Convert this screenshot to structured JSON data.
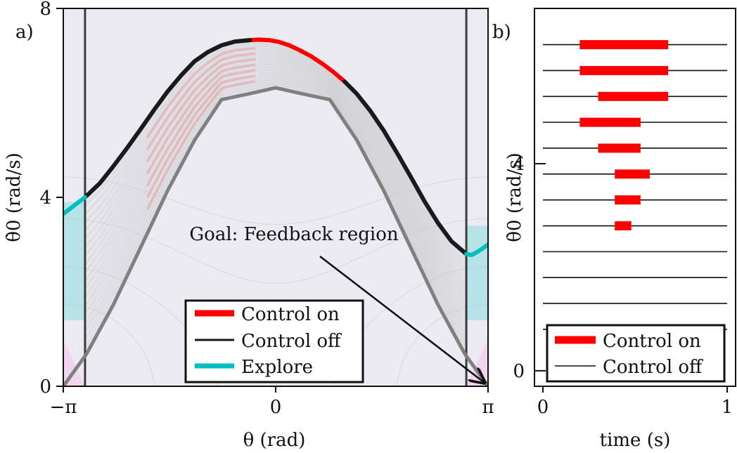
{
  "chart_data": [
    {
      "panel": "a)",
      "type": "line",
      "xlabel": "θ (rad)",
      "ylabel": "θ̇0 (rad/s)",
      "xlim": [
        -3.14159,
        3.14159
      ],
      "ylim": [
        0,
        8
      ],
      "x_ticks": [
        {
          "value": -3.14159,
          "label": "−π"
        },
        {
          "value": 0,
          "label": "0"
        },
        {
          "value": 3.14159,
          "label": "π"
        }
      ],
      "y_ticks": [
        {
          "value": 0,
          "label": "0"
        },
        {
          "value": 4,
          "label": "4"
        },
        {
          "value": 8,
          "label": "8"
        }
      ],
      "vertical_lines_x": [
        -2.82,
        2.82
      ],
      "series": [
        {
          "name": "Control on",
          "color": "#ff0000",
          "x": [
            -0.38,
            -0.25,
            -0.1,
            0.05,
            0.2,
            0.35,
            0.52,
            0.7,
            0.85,
            1.02
          ],
          "y": [
            7.33,
            7.34,
            7.33,
            7.29,
            7.22,
            7.12,
            6.99,
            6.82,
            6.66,
            6.45
          ]
        },
        {
          "name": "Control off",
          "color": "#1a1a1a",
          "x": [
            -2.82,
            -2.6,
            -2.4,
            -2.2,
            -2.0,
            -1.8,
            -1.6,
            -1.4,
            -1.2,
            -1.0,
            -0.8,
            -0.6,
            -0.38
          ],
          "y": [
            4.0,
            4.3,
            4.66,
            5.04,
            5.44,
            5.85,
            6.24,
            6.58,
            6.88,
            7.08,
            7.22,
            7.3,
            7.33
          ]
        },
        {
          "name": "Control off",
          "color": "#1a1a1a",
          "x": [
            1.02,
            1.2,
            1.4,
            1.6,
            1.8,
            2.0,
            2.2,
            2.4,
            2.6,
            2.82
          ],
          "y": [
            6.45,
            6.19,
            5.83,
            5.41,
            4.93,
            4.43,
            3.92,
            3.46,
            3.07,
            2.8
          ]
        },
        {
          "name": "Explore",
          "color": "#00bfbf",
          "x": [
            -3.14159,
            -3.05,
            -2.95,
            -2.82
          ],
          "y": [
            3.65,
            3.75,
            3.86,
            4.0
          ]
        },
        {
          "name": "Explore",
          "color": "#00bfbf",
          "x": [
            2.82,
            2.9,
            3.0,
            3.14159
          ],
          "y": [
            2.8,
            2.78,
            2.86,
            3.0
          ]
        },
        {
          "name": "",
          "color": "#808080",
          "x": [
            -3.14159,
            -2.8,
            -2.4,
            -2.0,
            -1.6,
            -1.2,
            -0.8,
            -0.4,
            0,
            0.4,
            0.8,
            1.2,
            1.6,
            2.0,
            2.4,
            2.8,
            3.14159
          ],
          "y": [
            0,
            0.68,
            1.73,
            2.93,
            4.14,
            5.21,
            6.07,
            6.19,
            6.32,
            6.19,
            6.07,
            5.21,
            4.14,
            2.93,
            1.73,
            0.68,
            0
          ]
        }
      ],
      "annotation": {
        "text": "Goal: Feedback region",
        "text_at": [
          0.55,
          2.8
        ],
        "arrow_to": [
          3.14159,
          0
        ]
      },
      "legend": {
        "position": "bottom-center",
        "entries": [
          "Control on",
          "Control off",
          "Explore"
        ]
      },
      "colors": {
        "background": "#ecebf4",
        "control_on": "#ff0000",
        "control_off": "#1a1a1a",
        "explore": "#00bfbf",
        "separatrix": "#808080"
      }
    },
    {
      "panel": "b)",
      "type": "bar",
      "xlabel": "time (s)",
      "ylabel": "θ̇0 (rad/s)",
      "xlim": [
        0,
        1
      ],
      "x_ticks": [
        {
          "value": 0,
          "label": "0"
        },
        {
          "value": 1,
          "label": "1"
        }
      ],
      "ylim": [
        -0.3,
        7.0
      ],
      "y_ticks": [
        {
          "value": 0,
          "label": "0"
        },
        {
          "value": 4,
          "label": "4"
        }
      ],
      "rows": [
        {
          "y": 6.3,
          "on": [
            0.2,
            0.68
          ]
        },
        {
          "y": 5.8,
          "on": [
            0.2,
            0.68
          ]
        },
        {
          "y": 5.3,
          "on": [
            0.3,
            0.68
          ]
        },
        {
          "y": 4.8,
          "on": [
            0.2,
            0.53
          ]
        },
        {
          "y": 4.3,
          "on": [
            0.3,
            0.53
          ]
        },
        {
          "y": 3.8,
          "on": [
            0.39,
            0.58
          ]
        },
        {
          "y": 3.3,
          "on": [
            0.39,
            0.53
          ]
        },
        {
          "y": 2.8,
          "on": [
            0.39,
            0.48
          ]
        },
        {
          "y": 2.3,
          "on": null
        },
        {
          "y": 1.8,
          "on": null
        },
        {
          "y": 1.3,
          "on": null
        },
        {
          "y": 0.8,
          "on": null
        }
      ],
      "legend": {
        "position": "bottom-center",
        "entries": [
          "Control on",
          "Control off"
        ]
      }
    }
  ]
}
